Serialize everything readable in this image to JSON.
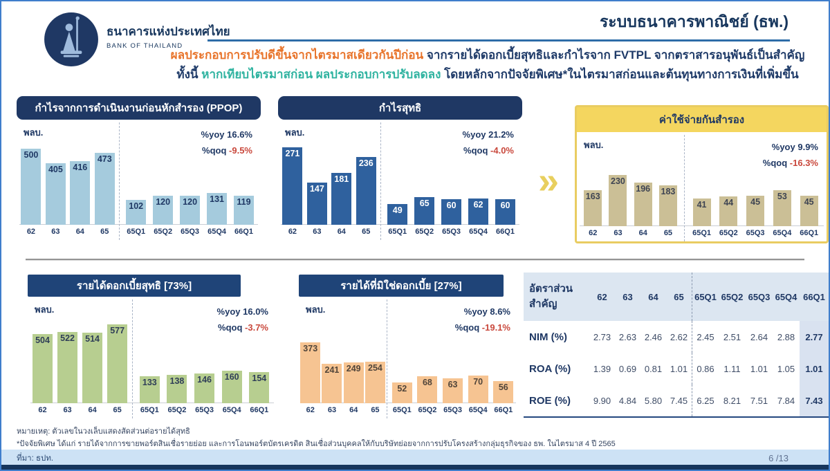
{
  "colors": {
    "navy": "#1F3864",
    "accent_blue": "#2E6DA8",
    "headline_orange": "#E8742B",
    "headline_teal": "#2FB3A0",
    "negative_red": "#C9483C",
    "yellow_box": "#F4D65F",
    "table_header_bg": "#DCE6F1"
  },
  "header": {
    "org_name_th": "ธนาคารแห่งประเทศไทย",
    "org_name_en": "BANK OF THAILAND",
    "slide_title": "ระบบธนาคารพาณิชย์ (ธพ.)",
    "headline_line1_highlight": "ผลประกอบการปรับดีขึ้นจากไตรมาสเดียวกันปีก่อน",
    "headline_line1_rest": " จากรายได้ดอกเบี้ยสุทธิและกำไรจาก FVTPL จากตราสารอนุพันธ์เป็นสำคัญ",
    "headline_line2_prefix": "ทั้งนี้ ",
    "headline_line2_highlight": "หากเทียบไตรมาสก่อน ผลประกอบการปรับลดลง",
    "headline_line2_rest": " โดยหลักจากปัจจัยพิเศษ*ในไตรมาสก่อนและต้นทุนทางการเงินที่เพิ่มขึ้น"
  },
  "chart_data": [
    {
      "id": "ppop",
      "type": "bar",
      "title": "กำไรจากการดำเนินงานก่อนหักสำรอง (PPOP)",
      "unit": "พลบ.",
      "yoy_label": "%yoy",
      "yoy_value": "16.6%",
      "qoq_label": "%qoq",
      "qoq_value": "-9.5%",
      "categories": [
        "62",
        "63",
        "64",
        "65",
        "65Q1",
        "65Q2",
        "65Q3",
        "65Q4",
        "66Q1"
      ],
      "values": [
        500,
        405,
        416,
        473,
        102,
        120,
        120,
        131,
        119
      ],
      "annual_count": 4,
      "bar_color": "#A5CBDD",
      "value_label_color": "#1F3864"
    },
    {
      "id": "net-profit",
      "type": "bar",
      "title": "กำไรสุทธิ",
      "unit": "พลบ.",
      "yoy_label": "%yoy",
      "yoy_value": "21.2%",
      "qoq_label": "%qoq",
      "qoq_value": "-4.0%",
      "categories": [
        "62",
        "63",
        "64",
        "65",
        "65Q1",
        "65Q2",
        "65Q3",
        "65Q4",
        "66Q1"
      ],
      "values": [
        271,
        147,
        181,
        236,
        49,
        65,
        60,
        62,
        60
      ],
      "annual_count": 4,
      "bar_color": "#2F619E",
      "value_label_color": "#FFFFFF"
    },
    {
      "id": "provision-expense",
      "type": "bar",
      "title": "ค่าใช้จ่ายกันสำรอง",
      "unit": "พลบ.",
      "yoy_label": "%yoy",
      "yoy_value": "9.9%",
      "qoq_label": "%qoq",
      "qoq_value": "-16.3%",
      "categories": [
        "62",
        "63",
        "64",
        "65",
        "65Q1",
        "65Q2",
        "65Q3",
        "65Q4",
        "66Q1"
      ],
      "values": [
        163,
        230,
        196,
        183,
        41,
        44,
        45,
        53,
        45
      ],
      "annual_count": 4,
      "bar_color": "#CBBF96",
      "value_label_color": "#3E4452"
    },
    {
      "id": "net-interest-income",
      "type": "bar",
      "title": "รายได้ดอกเบี้ยสุทธิ [73%]",
      "unit": "พลบ.",
      "yoy_label": "%yoy",
      "yoy_value": "16.0%",
      "qoq_label": "%qoq",
      "qoq_value": "-3.7%",
      "categories": [
        "62",
        "63",
        "64",
        "65",
        "65Q1",
        "65Q2",
        "65Q3",
        "65Q4",
        "66Q1"
      ],
      "values": [
        504,
        522,
        514,
        577,
        133,
        138,
        146,
        160,
        154
      ],
      "annual_count": 4,
      "bar_color": "#B7CE90",
      "value_label_color": "#2F3E57"
    },
    {
      "id": "non-interest-income",
      "type": "bar",
      "title": "รายได้ที่มิใช่ดอกเบี้ย [27%]",
      "unit": "พลบ.",
      "yoy_label": "%yoy",
      "yoy_value": "8.6%",
      "qoq_label": "%qoq",
      "qoq_value": "-19.1%",
      "categories": [
        "62",
        "63",
        "64",
        "65",
        "65Q1",
        "65Q2",
        "65Q3",
        "65Q4",
        "66Q1"
      ],
      "values": [
        373,
        241,
        249,
        254,
        52,
        68,
        63,
        70,
        56
      ],
      "annual_count": 4,
      "bar_color": "#F6C492",
      "value_label_color": "#51453A"
    },
    {
      "id": "key-ratios",
      "type": "table",
      "title": "อัตราส่วน\nสำคัญ",
      "columns": [
        "62",
        "63",
        "64",
        "65",
        "65Q1",
        "65Q2",
        "65Q3",
        "65Q4",
        "66Q1"
      ],
      "rows": [
        {
          "label": "NIM (%)",
          "values": [
            "2.73",
            "2.63",
            "2.46",
            "2.62",
            "2.45",
            "2.51",
            "2.64",
            "2.88",
            "2.77"
          ]
        },
        {
          "label": "ROA (%)",
          "values": [
            "1.39",
            "0.69",
            "0.81",
            "1.01",
            "0.86",
            "1.11",
            "1.01",
            "1.05",
            "1.01"
          ]
        },
        {
          "label": "ROE (%)",
          "values": [
            "9.90",
            "4.84",
            "5.80",
            "7.45",
            "6.25",
            "8.21",
            "7.51",
            "7.84",
            "7.43"
          ]
        }
      ]
    }
  ],
  "footer": {
    "note1": "หมายเหตุ: ตัวเลขในวงเล็บแสดงสัดส่วนต่อรายได้สุทธิ",
    "note2": "*ปัจจัยพิเศษ ได้แก่ รายได้จากการขายพอร์ตสินเชื่อรายย่อย และการโอนพอร์ตบัตรเครดิต สินเชื่อส่วนบุคคลให้กับบริษัทย่อยจากการปรับโครงสร้างกลุ่มธุรกิจของ ธพ. ในไตรมาส 4 ปี 2565",
    "source": "ที่มา: ธปท.",
    "page": "6 /13"
  }
}
